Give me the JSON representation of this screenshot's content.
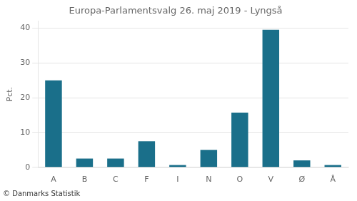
{
  "chart_data": {
    "type": "bar",
    "title": "Europa-Parlamentsvalg 26. maj 2019 - Lyngså",
    "categories": [
      "A",
      "B",
      "C",
      "F",
      "I",
      "N",
      "O",
      "V",
      "Ø",
      "Å"
    ],
    "values": [
      25.0,
      2.5,
      2.5,
      7.5,
      0.7,
      5.0,
      15.7,
      39.5,
      2.0,
      0.7
    ],
    "color": "#1a6f8a",
    "ylabel": "Pct.",
    "footer": "© Danmarks Statistik",
    "ylim": [
      0,
      42
    ],
    "yticks": [
      0,
      10,
      20,
      30,
      40
    ],
    "grid": true
  }
}
